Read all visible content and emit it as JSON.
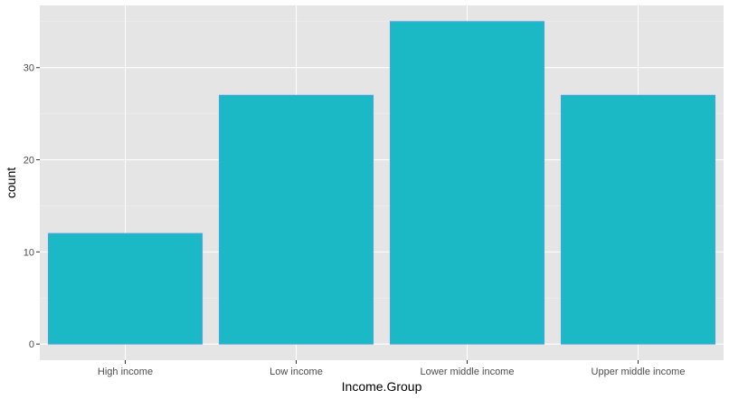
{
  "chart_data": {
    "type": "bar",
    "categories": [
      "High income",
      "Low income",
      "Lower middle income",
      "Upper middle income"
    ],
    "values": [
      12,
      27,
      35,
      27
    ],
    "xlabel": "Income.Group",
    "ylabel": "count",
    "ylim": [
      -1.75,
      36.75
    ],
    "yticks": [
      0,
      10,
      20,
      30
    ],
    "grid": true,
    "colors": {
      "bar_fill": "#1ab9c5",
      "bar_stroke": "#4fa3e0",
      "panel_background": "#e5e5e5",
      "grid_major": "#ffffff",
      "grid_minor": "#f0f0f0"
    }
  }
}
